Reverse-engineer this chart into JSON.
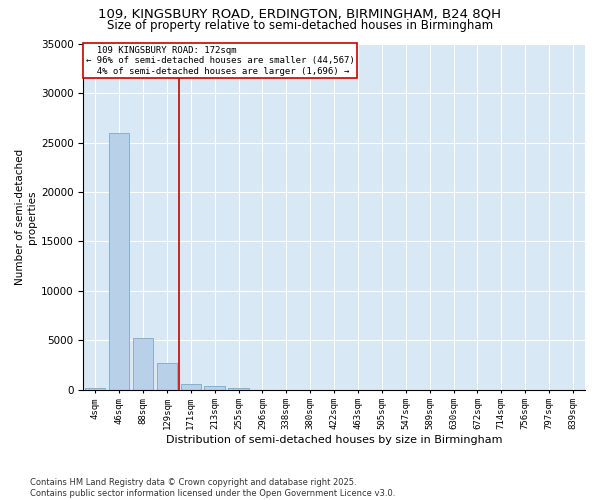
{
  "title_line1": "109, KINGSBURY ROAD, ERDINGTON, BIRMINGHAM, B24 8QH",
  "title_line2": "Size of property relative to semi-detached houses in Birmingham",
  "xlabel": "Distribution of semi-detached houses by size in Birmingham",
  "ylabel": "Number of semi-detached\nproperties",
  "footnote": "Contains HM Land Registry data © Crown copyright and database right 2025.\nContains public sector information licensed under the Open Government Licence v3.0.",
  "categories": [
    "4sqm",
    "46sqm",
    "88sqm",
    "129sqm",
    "171sqm",
    "213sqm",
    "255sqm",
    "296sqm",
    "338sqm",
    "380sqm",
    "422sqm",
    "463sqm",
    "505sqm",
    "547sqm",
    "589sqm",
    "630sqm",
    "672sqm",
    "714sqm",
    "756sqm",
    "797sqm",
    "839sqm"
  ],
  "values": [
    200,
    26000,
    5200,
    2700,
    600,
    400,
    150,
    0,
    0,
    0,
    0,
    0,
    0,
    0,
    0,
    0,
    0,
    0,
    0,
    0,
    0
  ],
  "bar_color": "#b8d0e8",
  "bar_edge_color": "#7aaac8",
  "background_color": "#d8e8f4",
  "grid_color": "#ffffff",
  "ylim": [
    0,
    35000
  ],
  "yticks": [
    0,
    5000,
    10000,
    15000,
    20000,
    25000,
    30000,
    35000
  ],
  "annotation_line1": "  109 KINGSBURY ROAD: 172sqm  ",
  "annotation_line2": "← 96% of semi-detached houses are smaller (44,567)",
  "annotation_line3": "  4% of semi-detached houses are larger (1,696) →",
  "vline_color": "#cc0000",
  "box_color": "#ffffff",
  "box_edge_color": "#cc0000",
  "vline_bar_index": 4
}
